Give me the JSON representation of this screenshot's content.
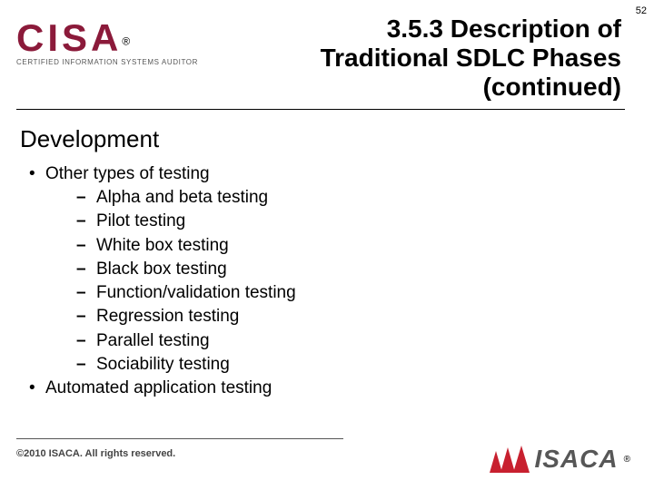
{
  "page_number": "52",
  "colors": {
    "brand_maroon": "#8b1a3a",
    "brand_gray": "#575757",
    "accent_red": "#c8202f",
    "text": "#000000",
    "background": "#ffffff"
  },
  "logo": {
    "brand": "CISA",
    "registered": "®",
    "tagline": "CERTIFIED INFORMATION SYSTEMS AUDITOR"
  },
  "title": {
    "line1": "3.5.3 Description of",
    "line2": "Traditional SDLC Phases",
    "line3": "(continued)"
  },
  "section_heading": "Development",
  "bullets": [
    {
      "text": "Other types of testing",
      "sub": [
        "Alpha and beta testing",
        "Pilot testing",
        "White box testing",
        "Black box testing",
        "Function/validation testing",
        "Regression testing",
        "Parallel testing",
        "Sociability testing"
      ]
    },
    {
      "text": "Automated application testing",
      "sub": []
    }
  ],
  "footer": {
    "copyright": "©2010 ISACA.  All rights reserved.",
    "footer_brand": "ISACA",
    "footer_reg": "®"
  }
}
